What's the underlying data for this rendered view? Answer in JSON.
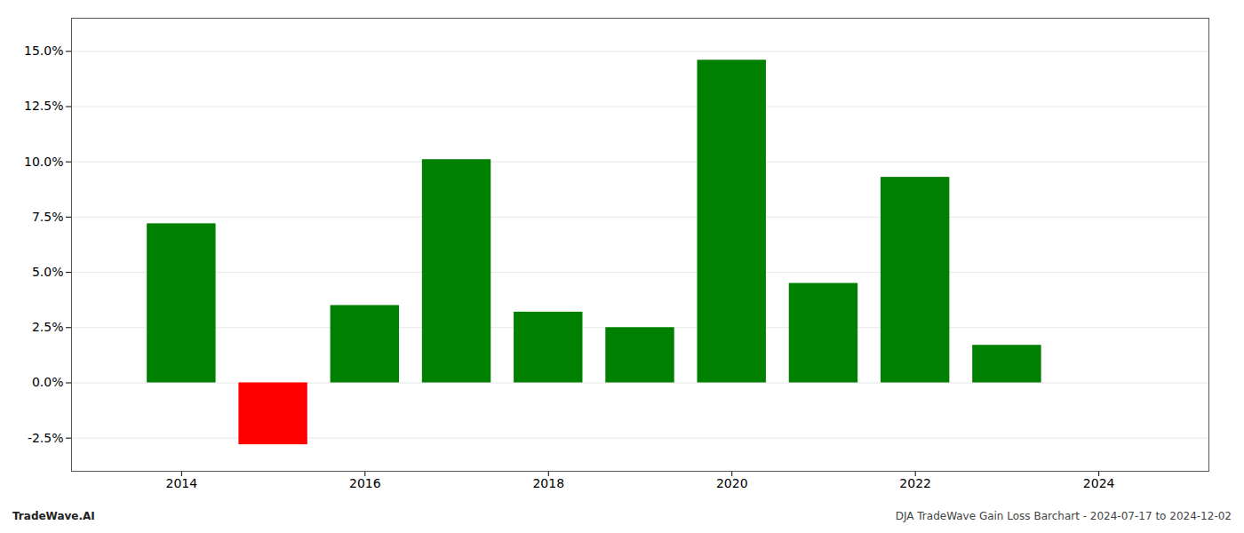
{
  "chart_data": {
    "type": "bar",
    "x": [
      2014,
      2015,
      2016,
      2017,
      2018,
      2019,
      2020,
      2021,
      2022,
      2023
    ],
    "values": [
      0.072,
      -0.028,
      0.035,
      0.101,
      0.032,
      0.025,
      0.146,
      0.045,
      0.093,
      0.017
    ],
    "colors": [
      "#008000",
      "#ff0000",
      "#008000",
      "#008000",
      "#008000",
      "#008000",
      "#008000",
      "#008000",
      "#008000",
      "#008000"
    ],
    "xlim": [
      2012.8,
      2025.2
    ],
    "xticks": [
      2014,
      2016,
      2018,
      2020,
      2022,
      2024
    ],
    "ylim": [
      -0.04,
      0.165
    ],
    "yticks": [
      {
        "value": -0.025,
        "label": "-2.5%"
      },
      {
        "value": 0.0,
        "label": "0.0%"
      },
      {
        "value": 0.025,
        "label": "2.5%"
      },
      {
        "value": 0.05,
        "label": "5.0%"
      },
      {
        "value": 0.075,
        "label": "7.5%"
      },
      {
        "value": 0.1,
        "label": "10.0%"
      },
      {
        "value": 0.125,
        "label": "12.5%"
      },
      {
        "value": 0.15,
        "label": "15.0%"
      }
    ],
    "grid": true,
    "annotations": [
      "TradeWave.AI",
      "DJA TradeWave Gain Loss Barchart - 2024-07-17 to 2024-12-02"
    ]
  }
}
